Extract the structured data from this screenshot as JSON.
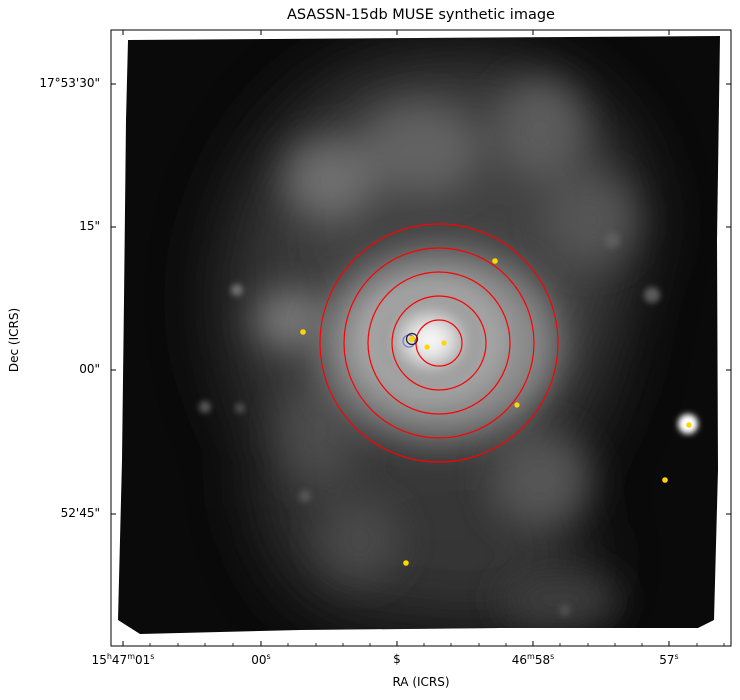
{
  "title": "ASASSN-15db MUSE synthetic image",
  "axes": {
    "xlabel": "RA (ICRS)",
    "ylabel": "Dec (ICRS)",
    "ytick_labels": [
      "17°53'30\"",
      "15\"",
      "00\"",
      "52'45\""
    ],
    "xtick_labels": [
      {
        "main": "15",
        "sup1": "h",
        "mid": "47",
        "sup2": "m",
        "end": "01",
        "sup3": "s"
      },
      {
        "main": "00",
        "sup1": "s"
      },
      {
        "main": "$"
      },
      {
        "main": "46",
        "sup1": "m",
        "mid": "58",
        "sup2": "s"
      },
      {
        "main": "57",
        "sup1": "s"
      }
    ]
  },
  "colors": {
    "rings": "#ff0000",
    "markers": "#ffd700",
    "host_marker": "#7b7bd6"
  },
  "image": {
    "colormap": "grayscale",
    "concentric_ring_count": 5
  }
}
